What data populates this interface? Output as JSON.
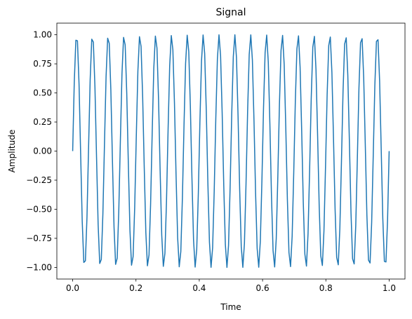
{
  "chart_data": {
    "type": "line",
    "title": "Signal",
    "xlabel": "Time",
    "ylabel": "Amplitude",
    "xlim": [
      -0.05,
      1.05
    ],
    "ylim": [
      -1.1,
      1.1
    ],
    "grid": false,
    "legend": "none",
    "line_color": "#1f77b4",
    "x_ticks": [
      {
        "value": 0.0,
        "label": "0.0"
      },
      {
        "value": 0.2,
        "label": "0.2"
      },
      {
        "value": 0.4,
        "label": "0.4"
      },
      {
        "value": 0.6,
        "label": "0.6"
      },
      {
        "value": 0.8,
        "label": "0.8"
      },
      {
        "value": 1.0,
        "label": "1.0"
      }
    ],
    "y_ticks": [
      {
        "value": -1.0,
        "label": "−1.00"
      },
      {
        "value": -0.75,
        "label": "−0.75"
      },
      {
        "value": -0.5,
        "label": "−0.50"
      },
      {
        "value": -0.25,
        "label": "−0.25"
      },
      {
        "value": 0.0,
        "label": "0.00"
      },
      {
        "value": 0.25,
        "label": "0.25"
      },
      {
        "value": 0.5,
        "label": "0.50"
      },
      {
        "value": 0.75,
        "label": "0.75"
      },
      {
        "value": 1.0,
        "label": "1.00"
      }
    ],
    "series": [
      {
        "function": "sine",
        "amplitude": 1.0,
        "frequency": 20,
        "x_start": 0.0,
        "x_end": 1.0,
        "num_samples": 200
      }
    ]
  }
}
